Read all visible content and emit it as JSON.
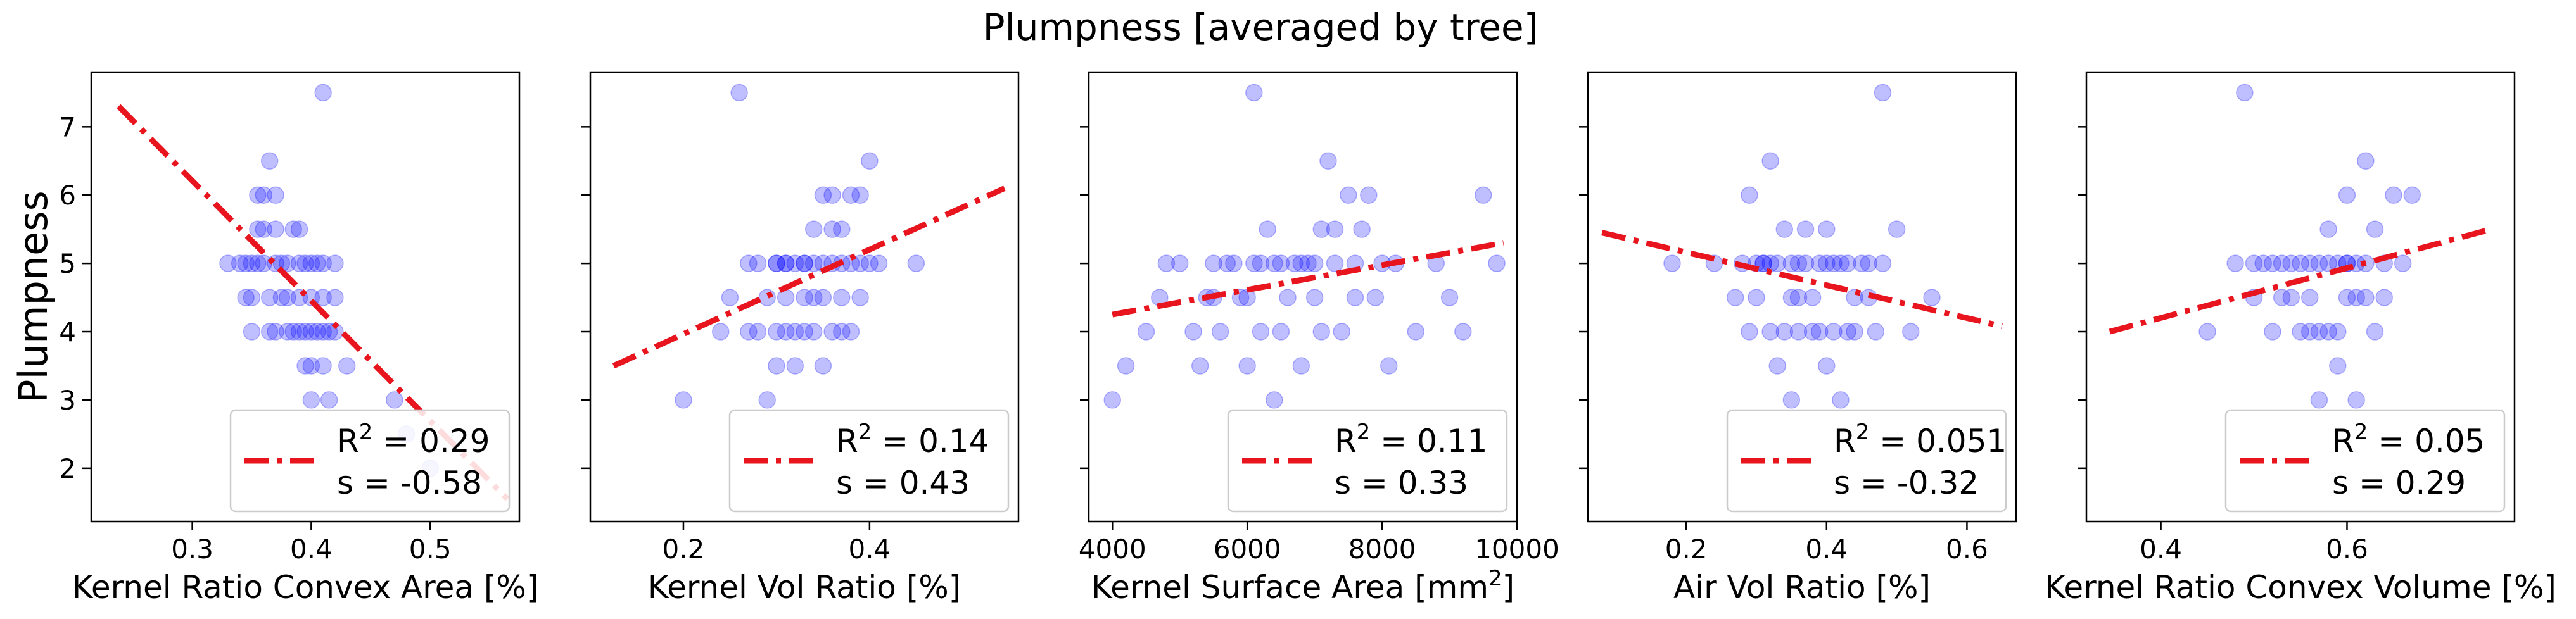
{
  "figure": {
    "title": "Plumpness [averaged by tree]"
  },
  "colors": {
    "points": "#0000ff",
    "fit_line": "#e8141e",
    "axes": "#000000"
  },
  "chart_data": [
    {
      "type": "scatter",
      "xlabel": "Kernel Ratio Convex Area [%]",
      "ylabel": "Plumpness",
      "xlim": [
        0.215,
        0.575
      ],
      "ylim": [
        1.22,
        7.8
      ],
      "xticks": [
        0.3,
        0.4,
        0.5
      ],
      "xtick_labels": [
        "0.3",
        "0.4",
        "0.5"
      ],
      "yticks": [
        2,
        3,
        4,
        5,
        6,
        7
      ],
      "ytick_labels": [
        "2",
        "3",
        "4",
        "5",
        "6",
        "7"
      ],
      "trend_line": {
        "x": [
          0.238,
          0.565
        ],
        "y": [
          7.3,
          1.55
        ]
      },
      "legend": {
        "r2_label": "R",
        "r2_sup": "2",
        "r2_value": "= 0.29",
        "s_label": "s",
        "s_value": "= -0.58",
        "placement": "lower-right"
      },
      "points": [
        [
          0.33,
          5.0
        ],
        [
          0.34,
          5.0
        ],
        [
          0.345,
          4.5
        ],
        [
          0.35,
          5.0
        ],
        [
          0.355,
          5.5
        ],
        [
          0.355,
          6.0
        ],
        [
          0.36,
          5.0
        ],
        [
          0.36,
          6.0
        ],
        [
          0.365,
          6.5
        ],
        [
          0.365,
          4.0
        ],
        [
          0.37,
          5.0
        ],
        [
          0.37,
          5.5
        ],
        [
          0.37,
          6.0
        ],
        [
          0.375,
          4.5
        ],
        [
          0.38,
          5.0
        ],
        [
          0.38,
          4.0
        ],
        [
          0.385,
          5.5
        ],
        [
          0.39,
          4.5
        ],
        [
          0.39,
          5.0
        ],
        [
          0.395,
          4.0
        ],
        [
          0.4,
          5.0
        ],
        [
          0.4,
          4.5
        ],
        [
          0.4,
          3.5
        ],
        [
          0.405,
          4.0
        ],
        [
          0.41,
          7.5
        ],
        [
          0.41,
          5.0
        ],
        [
          0.41,
          4.0
        ],
        [
          0.415,
          3.0
        ],
        [
          0.42,
          4.5
        ],
        [
          0.42,
          4.0
        ],
        [
          0.35,
          4.0
        ],
        [
          0.36,
          5.5
        ],
        [
          0.385,
          4.0
        ],
        [
          0.395,
          5.0
        ],
        [
          0.4,
          3.0
        ],
        [
          0.405,
          5.0
        ],
        [
          0.41,
          4.5
        ],
        [
          0.415,
          4.0
        ],
        [
          0.43,
          3.5
        ],
        [
          0.47,
          3.0
        ],
        [
          0.48,
          2.5
        ],
        [
          0.5,
          2.0
        ],
        [
          0.345,
          5.0
        ],
        [
          0.375,
          5.0
        ],
        [
          0.39,
          5.5
        ],
        [
          0.38,
          4.5
        ],
        [
          0.365,
          4.5
        ],
        [
          0.42,
          5.0
        ],
        [
          0.4,
          4.0
        ],
        [
          0.35,
          4.5
        ],
        [
          0.395,
          3.5
        ],
        [
          0.41,
          3.5
        ],
        [
          0.37,
          4.0
        ],
        [
          0.355,
          5.0
        ],
        [
          0.39,
          4.0
        ]
      ]
    },
    {
      "type": "scatter",
      "xlabel": "Kernel Vol Ratio [%]",
      "ylabel": "",
      "xlim": [
        0.1,
        0.56
      ],
      "ylim": [
        1.22,
        7.8
      ],
      "xticks": [
        0.2,
        0.4
      ],
      "xtick_labels": [
        "0.2",
        "0.4"
      ],
      "trend_line": {
        "x": [
          0.125,
          0.545
        ],
        "y": [
          3.5,
          6.1
        ]
      },
      "legend": {
        "r2_label": "R",
        "r2_sup": "2",
        "r2_value": "= 0.14",
        "s_label": "s",
        "s_value": "= 0.43",
        "placement": "lower-right"
      },
      "points": [
        [
          0.26,
          7.5
        ],
        [
          0.2,
          3.0
        ],
        [
          0.24,
          4.0
        ],
        [
          0.25,
          4.5
        ],
        [
          0.27,
          4.0
        ],
        [
          0.28,
          5.0
        ],
        [
          0.29,
          4.5
        ],
        [
          0.3,
          5.0
        ],
        [
          0.3,
          4.0
        ],
        [
          0.31,
          5.0
        ],
        [
          0.31,
          4.5
        ],
        [
          0.32,
          5.0
        ],
        [
          0.32,
          3.5
        ],
        [
          0.33,
          5.0
        ],
        [
          0.33,
          4.0
        ],
        [
          0.34,
          5.5
        ],
        [
          0.34,
          5.0
        ],
        [
          0.35,
          6.0
        ],
        [
          0.35,
          4.5
        ],
        [
          0.36,
          5.0
        ],
        [
          0.36,
          4.0
        ],
        [
          0.37,
          5.0
        ],
        [
          0.37,
          5.5
        ],
        [
          0.38,
          6.0
        ],
        [
          0.38,
          5.0
        ],
        [
          0.39,
          6.0
        ],
        [
          0.39,
          4.5
        ],
        [
          0.4,
          6.5
        ],
        [
          0.4,
          5.0
        ],
        [
          0.41,
          5.0
        ],
        [
          0.45,
          5.0
        ],
        [
          0.28,
          4.0
        ],
        [
          0.29,
          3.0
        ],
        [
          0.3,
          3.5
        ],
        [
          0.31,
          4.0
        ],
        [
          0.33,
          4.5
        ],
        [
          0.34,
          4.0
        ],
        [
          0.35,
          5.0
        ],
        [
          0.36,
          5.5
        ],
        [
          0.37,
          4.0
        ],
        [
          0.38,
          4.0
        ],
        [
          0.27,
          5.0
        ],
        [
          0.32,
          4.0
        ],
        [
          0.34,
          4.5
        ],
        [
          0.36,
          6.0
        ],
        [
          0.3,
          5.0
        ],
        [
          0.33,
          5.0
        ],
        [
          0.35,
          3.5
        ],
        [
          0.39,
          5.0
        ],
        [
          0.31,
          5.0
        ],
        [
          0.37,
          4.5
        ]
      ]
    },
    {
      "type": "scatter",
      "xlabel": "Kernel Surface Area [mm",
      "xlabel_sup": "2",
      "xlabel_suffix": "]",
      "ylabel": "",
      "xlim": [
        3650,
        10000
      ],
      "ylim": [
        1.22,
        7.8
      ],
      "xticks": [
        4000,
        6000,
        8000,
        10000
      ],
      "xtick_labels": [
        "4000",
        "6000",
        "8000",
        "10000"
      ],
      "trend_line": {
        "x": [
          4000,
          9800
        ],
        "y": [
          4.25,
          5.3
        ]
      },
      "legend": {
        "r2_label": "R",
        "r2_sup": "2",
        "r2_value": "= 0.11",
        "s_label": "s",
        "s_value": "= 0.33",
        "placement": "lower-right"
      },
      "points": [
        [
          4000,
          3.0
        ],
        [
          4200,
          3.5
        ],
        [
          4500,
          4.0
        ],
        [
          4700,
          4.5
        ],
        [
          4800,
          5.0
        ],
        [
          5000,
          5.0
        ],
        [
          5200,
          4.0
        ],
        [
          5300,
          3.5
        ],
        [
          5400,
          4.5
        ],
        [
          5500,
          5.0
        ],
        [
          5600,
          4.0
        ],
        [
          5800,
          5.0
        ],
        [
          5900,
          4.5
        ],
        [
          6000,
          3.5
        ],
        [
          6100,
          7.5
        ],
        [
          6100,
          5.0
        ],
        [
          6200,
          4.0
        ],
        [
          6300,
          5.5
        ],
        [
          6400,
          3.0
        ],
        [
          6500,
          5.0
        ],
        [
          6600,
          4.5
        ],
        [
          6700,
          5.0
        ],
        [
          6800,
          3.5
        ],
        [
          6900,
          5.0
        ],
        [
          7000,
          4.5
        ],
        [
          7100,
          5.5
        ],
        [
          7200,
          6.5
        ],
        [
          7300,
          5.0
        ],
        [
          7400,
          4.0
        ],
        [
          7500,
          6.0
        ],
        [
          7600,
          5.0
        ],
        [
          7700,
          5.5
        ],
        [
          7800,
          6.0
        ],
        [
          7900,
          4.5
        ],
        [
          8000,
          5.0
        ],
        [
          8100,
          3.5
        ],
        [
          8200,
          5.0
        ],
        [
          8500,
          4.0
        ],
        [
          8800,
          5.0
        ],
        [
          9000,
          4.5
        ],
        [
          9200,
          4.0
        ],
        [
          9500,
          6.0
        ],
        [
          9700,
          5.0
        ],
        [
          5700,
          5.0
        ],
        [
          6000,
          4.5
        ],
        [
          6400,
          5.0
        ],
        [
          6800,
          5.0
        ],
        [
          7100,
          4.0
        ],
        [
          7600,
          4.5
        ],
        [
          6500,
          4.0
        ],
        [
          5500,
          4.5
        ],
        [
          7300,
          5.5
        ],
        [
          6200,
          5.0
        ],
        [
          7000,
          5.0
        ]
      ]
    },
    {
      "type": "scatter",
      "xlabel": "Air Vol Ratio [%]",
      "ylabel": "",
      "xlim": [
        0.06,
        0.67
      ],
      "ylim": [
        1.22,
        7.8
      ],
      "xticks": [
        0.2,
        0.4,
        0.6
      ],
      "xtick_labels": [
        "0.2",
        "0.4",
        "0.6"
      ],
      "trend_line": {
        "x": [
          0.08,
          0.65
        ],
        "y": [
          5.45,
          4.08
        ]
      },
      "legend": {
        "r2_label": "R",
        "r2_sup": "2",
        "r2_value": "= 0.051",
        "s_label": "s",
        "s_value": "= -0.32",
        "placement": "lower-right"
      },
      "points": [
        [
          0.18,
          5.0
        ],
        [
          0.24,
          5.0
        ],
        [
          0.27,
          4.5
        ],
        [
          0.28,
          5.0
        ],
        [
          0.29,
          6.0
        ],
        [
          0.3,
          4.5
        ],
        [
          0.31,
          5.0
        ],
        [
          0.32,
          6.5
        ],
        [
          0.32,
          4.0
        ],
        [
          0.33,
          5.0
        ],
        [
          0.33,
          3.5
        ],
        [
          0.34,
          5.5
        ],
        [
          0.35,
          4.5
        ],
        [
          0.35,
          3.0
        ],
        [
          0.36,
          5.0
        ],
        [
          0.36,
          4.0
        ],
        [
          0.37,
          5.0
        ],
        [
          0.38,
          4.5
        ],
        [
          0.38,
          4.0
        ],
        [
          0.39,
          5.0
        ],
        [
          0.4,
          3.5
        ],
        [
          0.4,
          5.5
        ],
        [
          0.41,
          4.0
        ],
        [
          0.42,
          5.0
        ],
        [
          0.42,
          3.0
        ],
        [
          0.43,
          5.0
        ],
        [
          0.44,
          4.0
        ],
        [
          0.45,
          5.0
        ],
        [
          0.46,
          4.5
        ],
        [
          0.47,
          4.0
        ],
        [
          0.48,
          7.5
        ],
        [
          0.48,
          5.0
        ],
        [
          0.5,
          5.5
        ],
        [
          0.52,
          4.0
        ],
        [
          0.55,
          4.5
        ],
        [
          0.3,
          5.0
        ],
        [
          0.34,
          4.0
        ],
        [
          0.37,
          5.5
        ],
        [
          0.41,
          5.0
        ],
        [
          0.44,
          4.5
        ],
        [
          0.29,
          4.0
        ],
        [
          0.31,
          5.0
        ],
        [
          0.39,
          4.0
        ],
        [
          0.46,
          5.0
        ],
        [
          0.35,
          5.0
        ],
        [
          0.32,
          5.0
        ],
        [
          0.43,
          4.0
        ],
        [
          0.4,
          5.0
        ],
        [
          0.36,
          4.5
        ]
      ]
    },
    {
      "type": "scatter",
      "xlabel": "Kernel Ratio Convex Volume [%]",
      "ylabel": "",
      "xlim": [
        0.32,
        0.78
      ],
      "ylim": [
        1.22,
        7.8
      ],
      "xticks": [
        0.4,
        0.6
      ],
      "xtick_labels": [
        "0.4",
        "0.6"
      ],
      "trend_line": {
        "x": [
          0.345,
          0.755
        ],
        "y": [
          4.0,
          5.5
        ]
      },
      "legend": {
        "r2_label": "R",
        "r2_sup": "2",
        "r2_value": "= 0.05",
        "s_label": "s",
        "s_value": "= 0.29",
        "placement": "lower-right"
      },
      "points": [
        [
          0.49,
          7.5
        ],
        [
          0.45,
          4.0
        ],
        [
          0.48,
          5.0
        ],
        [
          0.5,
          4.5
        ],
        [
          0.51,
          5.0
        ],
        [
          0.52,
          4.0
        ],
        [
          0.53,
          5.0
        ],
        [
          0.54,
          4.5
        ],
        [
          0.55,
          5.0
        ],
        [
          0.56,
          4.0
        ],
        [
          0.57,
          5.0
        ],
        [
          0.57,
          3.0
        ],
        [
          0.58,
          5.5
        ],
        [
          0.58,
          4.0
        ],
        [
          0.59,
          5.0
        ],
        [
          0.59,
          3.5
        ],
        [
          0.6,
          5.0
        ],
        [
          0.6,
          6.0
        ],
        [
          0.61,
          4.5
        ],
        [
          0.61,
          3.0
        ],
        [
          0.62,
          5.0
        ],
        [
          0.62,
          6.5
        ],
        [
          0.63,
          4.0
        ],
        [
          0.63,
          5.5
        ],
        [
          0.64,
          5.0
        ],
        [
          0.65,
          6.0
        ],
        [
          0.66,
          5.0
        ],
        [
          0.67,
          6.0
        ],
        [
          0.54,
          5.0
        ],
        [
          0.56,
          4.5
        ],
        [
          0.58,
          5.0
        ],
        [
          0.6,
          4.5
        ],
        [
          0.52,
          5.0
        ],
        [
          0.55,
          4.0
        ],
        [
          0.57,
          4.0
        ],
        [
          0.53,
          4.5
        ],
        [
          0.61,
          5.0
        ],
        [
          0.64,
          4.5
        ],
        [
          0.5,
          5.0
        ],
        [
          0.59,
          4.0
        ],
        [
          0.62,
          4.5
        ],
        [
          0.56,
          5.0
        ],
        [
          0.6,
          5.0
        ]
      ]
    }
  ]
}
